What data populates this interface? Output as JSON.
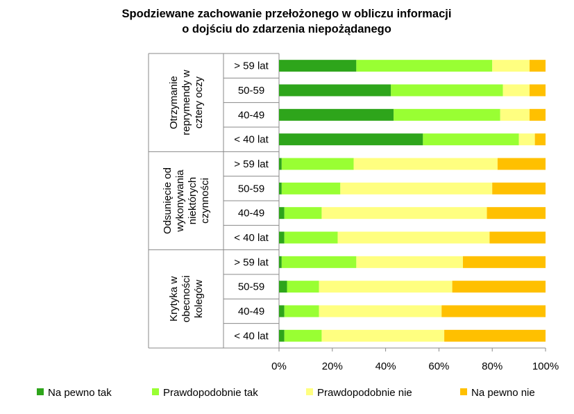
{
  "chart_data": {
    "type": "bar",
    "orientation": "horizontal",
    "stacked": "percent",
    "title_lines": [
      "Spodziewane zachowanie przełożonego w obliczu informacji",
      "o dojściu do zdarzenia niepożądanego"
    ],
    "xlabel": "",
    "ylabel": "",
    "xlim": [
      0,
      100
    ],
    "x_ticks": [
      "0%",
      "20%",
      "40%",
      "60%",
      "80%",
      "100%"
    ],
    "grid": false,
    "legend_position": "bottom",
    "groups": [
      {
        "label_lines": [
          "Otrzymanie",
          "reprymendy w",
          "cztery oczy"
        ],
        "categories": [
          "> 59 lat",
          "50-59",
          "40-49",
          "< 40 lat"
        ]
      },
      {
        "label_lines": [
          "Odsunięcie od",
          "wykonywania",
          "niektórych",
          "czynności"
        ],
        "categories": [
          "> 59 lat",
          "50-59",
          "40-49",
          "< 40 lat"
        ]
      },
      {
        "label_lines": [
          "Krytyka w",
          "obecności",
          "kolegów"
        ],
        "categories": [
          "> 59 lat",
          "50-59",
          "40-49",
          "< 40 lat"
        ]
      }
    ],
    "series": [
      {
        "name": "Na pewno tak",
        "color": "#2ea51b",
        "values": [
          29,
          42,
          43,
          54,
          1,
          1,
          2,
          2,
          1,
          3,
          2,
          2
        ]
      },
      {
        "name": "Prawdopodobnie tak",
        "color": "#99ff33",
        "values": [
          51,
          42,
          40,
          36,
          27,
          22,
          14,
          20,
          28,
          12,
          13,
          14
        ]
      },
      {
        "name": "Prawdopodobnie nie",
        "color": "#ffff80",
        "values": [
          14,
          10,
          11,
          6,
          54,
          57,
          62,
          57,
          40,
          50,
          46,
          46
        ]
      },
      {
        "name": "Na pewno nie",
        "color": "#ffc000",
        "values": [
          6,
          6,
          6,
          4,
          18,
          20,
          22,
          21,
          31,
          35,
          39,
          38
        ]
      }
    ]
  }
}
